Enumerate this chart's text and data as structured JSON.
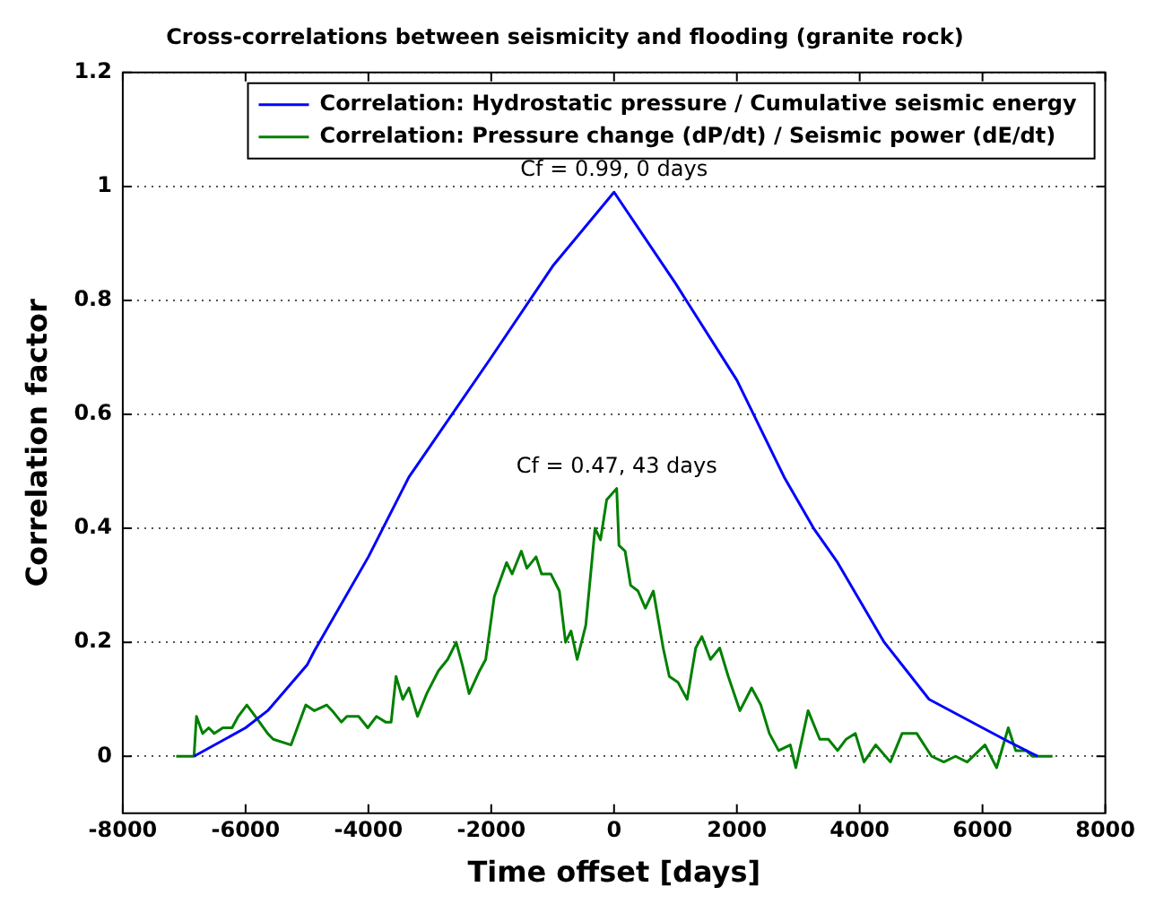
{
  "chart_data": {
    "type": "line",
    "title": "Cross-correlations between seismicity and flooding (granite rock)",
    "xlabel": "Time offset [days]",
    "ylabel": "Correlation factor",
    "xlim": [
      -8000,
      8000
    ],
    "xticks": [
      -8000,
      -6000,
      -4000,
      -2000,
      0,
      2000,
      4000,
      6000,
      8000
    ],
    "ylim": [
      -0.1,
      1.2
    ],
    "yticks": [
      0,
      0.2,
      0.4,
      0.6,
      0.8,
      1,
      1.2
    ],
    "grid": "y",
    "legend": "top right",
    "marker": "none",
    "line_style": "solid",
    "annotations": [
      {
        "text": "Cf = 0.99, 0 days",
        "x": 0,
        "y": 0.99
      },
      {
        "text": "Cf = 0.47, 43 days",
        "x": 43,
        "y": 0.47
      }
    ],
    "series": [
      {
        "name": "Correlation: Hydrostatic pressure / Cumulative seismic energy",
        "color": "#0000ff",
        "x": [
          -6840,
          -6000,
          -5640,
          -5000,
          -4880,
          -4000,
          -3340,
          -2000,
          -1000,
          0,
          1000,
          2000,
          2770,
          3250,
          3640,
          4400,
          5130,
          6000,
          6420,
          6900
        ],
        "values": [
          0,
          0.05,
          0.08,
          0.16,
          0.185,
          0.35,
          0.49,
          0.7,
          0.86,
          0.99,
          0.83,
          0.66,
          0.49,
          0.4,
          0.34,
          0.2,
          0.1,
          0.05,
          0.026,
          0
        ]
      },
      {
        "name": "Correlation: Pressure change (dP/dt) / Seismic power (dE/dt)",
        "color": "#008000",
        "x": [
          -7130,
          -6840,
          -6800,
          -6700,
          -6600,
          -6510,
          -6370,
          -6220,
          -6120,
          -5980,
          -5840,
          -5640,
          -5550,
          -5260,
          -5020,
          -4880,
          -4680,
          -4590,
          -4440,
          -4350,
          -4160,
          -4010,
          -3870,
          -3720,
          -3630,
          -3550,
          -3440,
          -3340,
          -3200,
          -3050,
          -2860,
          -2710,
          -2570,
          -2470,
          -2360,
          -2190,
          -2090,
          -1950,
          -1750,
          -1660,
          -1510,
          -1420,
          -1270,
          -1180,
          -1030,
          -890,
          -790,
          -700,
          -600,
          -460,
          -310,
          -220,
          -120,
          43,
          80,
          180,
          270,
          390,
          510,
          640,
          800,
          900,
          1040,
          1190,
          1330,
          1430,
          1570,
          1720,
          1860,
          2050,
          2240,
          2390,
          2530,
          2680,
          2870,
          2960,
          3160,
          3350,
          3490,
          3640,
          3780,
          3930,
          4070,
          4260,
          4500,
          4690,
          4930,
          5170,
          5370,
          5560,
          5750,
          6040,
          6230,
          6420,
          6540,
          6710,
          6810,
          7140
        ],
        "values": [
          0,
          0,
          0.07,
          0.04,
          0.05,
          0.04,
          0.05,
          0.05,
          0.07,
          0.09,
          0.07,
          0.04,
          0.03,
          0.02,
          0.09,
          0.08,
          0.09,
          0.08,
          0.06,
          0.07,
          0.07,
          0.05,
          0.07,
          0.06,
          0.06,
          0.14,
          0.1,
          0.12,
          0.07,
          0.11,
          0.15,
          0.17,
          0.2,
          0.16,
          0.11,
          0.15,
          0.17,
          0.28,
          0.34,
          0.32,
          0.36,
          0.33,
          0.35,
          0.32,
          0.32,
          0.29,
          0.2,
          0.22,
          0.17,
          0.23,
          0.4,
          0.38,
          0.45,
          0.47,
          0.37,
          0.36,
          0.3,
          0.29,
          0.26,
          0.29,
          0.19,
          0.14,
          0.13,
          0.1,
          0.19,
          0.21,
          0.17,
          0.19,
          0.14,
          0.08,
          0.12,
          0.09,
          0.04,
          0.01,
          0.02,
          -0.02,
          0.08,
          0.03,
          0.03,
          0.01,
          0.03,
          0.04,
          -0.01,
          0.02,
          -0.01,
          0.04,
          0.04,
          0,
          -0.01,
          0,
          -0.01,
          0.02,
          -0.02,
          0.05,
          0.01,
          0.01,
          0,
          0
        ]
      }
    ]
  }
}
